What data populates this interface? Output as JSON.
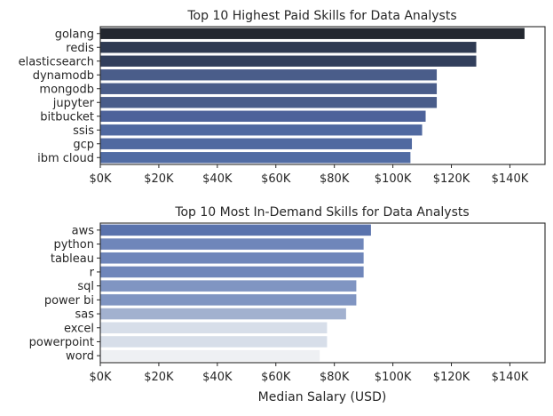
{
  "chart_data": [
    {
      "type": "bar",
      "orientation": "horizontal",
      "title": "Top 10 Highest Paid Skills for Data Analysts",
      "xlabel": "",
      "ylabel": "",
      "categories": [
        "golang",
        "redis",
        "elasticsearch",
        "dynamodb",
        "mongodb",
        "jupyter",
        "bitbucket",
        "ssis",
        "gcp",
        "ibm cloud"
      ],
      "values": [
        145000,
        128500,
        128500,
        115000,
        115000,
        115000,
        111200,
        110000,
        106500,
        106000
      ],
      "colors": [
        "#23272f",
        "#2f3a52",
        "#323f5c",
        "#4a5d8a",
        "#4a5d8a",
        "#4a5d8a",
        "#4d629a",
        "#5069a0",
        "#5069a0",
        "#516ca4"
      ],
      "xlim": [
        0,
        152000
      ],
      "xticks": [
        0,
        20000,
        40000,
        60000,
        80000,
        100000,
        120000,
        140000
      ],
      "xtick_labels": [
        "$0K",
        "$20K",
        "$40K",
        "$60K",
        "$80K",
        "$100K",
        "$120K",
        "$140K"
      ],
      "grid": false
    },
    {
      "type": "bar",
      "orientation": "horizontal",
      "title": "Top 10 Most In-Demand Skills for Data Analysts",
      "xlabel": "Median Salary (USD)",
      "ylabel": "",
      "categories": [
        "aws",
        "python",
        "tableau",
        "r",
        "sql",
        "power bi",
        "sas",
        "excel",
        "powerpoint",
        "word"
      ],
      "values": [
        92500,
        90000,
        90000,
        90000,
        87500,
        87500,
        84000,
        77500,
        77500,
        75000
      ],
      "colors": [
        "#5a73ad",
        "#6f86ba",
        "#6f86ba",
        "#6f86ba",
        "#8095c2",
        "#8095c2",
        "#a2b1cf",
        "#d7dee9",
        "#d7dee9",
        "#eef0f3"
      ],
      "xlim": [
        0,
        152000
      ],
      "xticks": [
        0,
        20000,
        40000,
        60000,
        80000,
        100000,
        120000,
        140000
      ],
      "xtick_labels": [
        "$0K",
        "$20K",
        "$40K",
        "$60K",
        "$80K",
        "$100K",
        "$120K",
        "$140K"
      ],
      "grid": false
    }
  ]
}
